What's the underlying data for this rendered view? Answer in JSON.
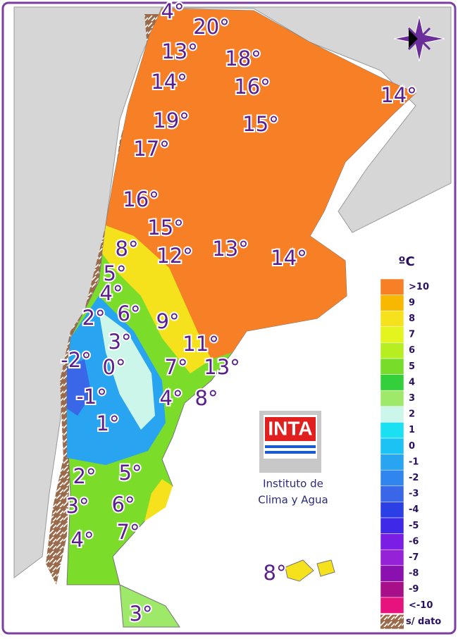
{
  "map": {
    "labels": [
      "4°",
      "20°",
      "13°",
      "18°",
      "14°",
      "16°",
      "14°",
      "19°",
      "15°",
      "17°",
      "16°",
      "15°",
      "8°",
      "12°",
      "13°",
      "14°",
      "5°",
      "4°",
      "2°",
      "6°",
      "9°",
      "3°",
      "11°",
      "-2°",
      "0°",
      "7°",
      "13°",
      "-1°",
      "4°",
      "8°",
      "1°",
      "2°",
      "5°",
      "3°",
      "6°",
      "7°",
      "4°",
      "8°",
      "3°"
    ]
  },
  "logo": {
    "acronym": "INTA",
    "line1": "Instituto de",
    "line2": "Clima y Agua"
  },
  "legend": {
    "title": "ºC",
    "entries": [
      {
        "label": ">10",
        "color": "#f77f25"
      },
      {
        "label": "9",
        "color": "#f9b800"
      },
      {
        "label": "8",
        "color": "#f5e21d"
      },
      {
        "label": "7",
        "color": "#e4f41f"
      },
      {
        "label": "6",
        "color": "#b6ee22"
      },
      {
        "label": "5",
        "color": "#78dc2a"
      },
      {
        "label": "4",
        "color": "#33d03c"
      },
      {
        "label": "3",
        "color": "#9ee86a"
      },
      {
        "label": "2",
        "color": "#ccf6ea"
      },
      {
        "label": "1",
        "color": "#1ae0f2"
      },
      {
        "label": "0",
        "color": "#1cc2f4"
      },
      {
        "label": "-1",
        "color": "#29a4f0"
      },
      {
        "label": "-2",
        "color": "#3085ee"
      },
      {
        "label": "-3",
        "color": "#3a66e8"
      },
      {
        "label": "-4",
        "color": "#2a3fe4"
      },
      {
        "label": "-5",
        "color": "#3f28e8"
      },
      {
        "label": "-6",
        "color": "#7a1ee6"
      },
      {
        "label": "-7",
        "color": "#9622d8"
      },
      {
        "label": "-8",
        "color": "#8a10b0"
      },
      {
        "label": "-9",
        "color": "#a8108a"
      },
      {
        "label": "<-10",
        "color": "#e6137e"
      }
    ],
    "nodata": "s/ dato"
  }
}
